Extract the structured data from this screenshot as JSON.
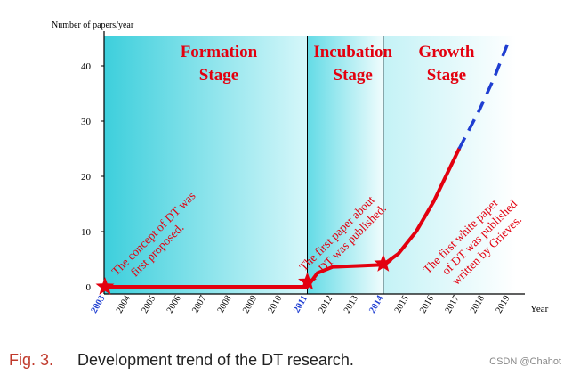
{
  "chart_data": {
    "type": "line",
    "ylabel": "Number of papers/year",
    "xlabel": "Year",
    "ylim": [
      0,
      45
    ],
    "yticks": [
      0,
      10,
      20,
      30,
      40
    ],
    "xlim": [
      2003,
      2019
    ],
    "x_ticks": [
      "2003",
      "2004",
      "2005",
      "2006",
      "2007",
      "2008",
      "2009",
      "2010",
      "2011",
      "2012",
      "2013",
      "2014",
      "2015",
      "2016",
      "2017",
      "2018",
      "2019"
    ],
    "highlight_years": [
      "2003",
      "2011",
      "2014"
    ],
    "stages": [
      {
        "name_line1": "Formation",
        "name_line2": "Stage",
        "start": 2003,
        "end": 2011
      },
      {
        "name_line1": "Incubation",
        "name_line2": "Stage",
        "start": 2011,
        "end": 2014
      },
      {
        "name_line1": "Growth",
        "name_line2": "Stage",
        "start": 2014,
        "end": 2019
      }
    ],
    "series": [
      {
        "name": "actual",
        "style": "solid",
        "points": [
          [
            2003,
            0
          ],
          [
            2011,
            0
          ],
          [
            2011.4,
            2.5
          ],
          [
            2012,
            3.6
          ],
          [
            2013,
            3.8
          ],
          [
            2014,
            4.0
          ],
          [
            2014.6,
            6
          ],
          [
            2015.3,
            10
          ],
          [
            2016,
            15.5
          ],
          [
            2017,
            25
          ]
        ]
      },
      {
        "name": "projected",
        "style": "dashed",
        "points": [
          [
            2017,
            25
          ],
          [
            2017.8,
            32
          ],
          [
            2018.4,
            38
          ],
          [
            2019,
            45
          ]
        ]
      }
    ],
    "milestones": [
      {
        "year": 2003,
        "value": 0,
        "line1": "The concept of DT was",
        "line2": "first proposed."
      },
      {
        "year": 2011,
        "value": 0.9,
        "line1": "The first paper about",
        "line2": "DT was published."
      },
      {
        "year": 2014,
        "value": 4.2,
        "line1": "The first white paper",
        "line2": "of DT was published",
        "line3": "written by Grieves."
      }
    ],
    "colors": {
      "formation_dark": "#3dcfdc",
      "formation_light": "#d6f7fa",
      "incubation_dark": "#63dbe6",
      "incubation_light": "#f0fcfd",
      "growth_dark": "#c4f2f6",
      "growth_light": "#ffffff",
      "line": "#e3000f",
      "dashed": "#1f3ed1",
      "stage_text": "#e3000f",
      "highlight_tick": "#1f3ed1"
    }
  },
  "caption": {
    "fig_label": "Fig. 3.",
    "text": "Development trend of the DT research."
  },
  "watermark": "CSDN @Chahot"
}
